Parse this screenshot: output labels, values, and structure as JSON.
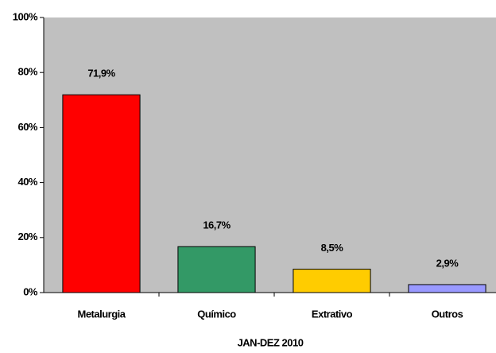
{
  "chart_data": {
    "type": "bar",
    "x_label": "JAN-DEZ 2010",
    "categories": [
      "Metalurgia",
      "Químico",
      "Extrativo",
      "Outros"
    ],
    "values": [
      71.9,
      16.7,
      8.5,
      2.9
    ],
    "value_labels": [
      "71,9%",
      "16,7%",
      "8,5%",
      "2,9%"
    ],
    "colors": [
      "#ff0000",
      "#339966",
      "#ffcc00",
      "#9999ff"
    ],
    "plot_background": "#c0c0c0",
    "ylim": [
      0,
      100
    ],
    "yticks": [
      {
        "value": 0,
        "label": "0%"
      },
      {
        "value": 20,
        "label": "20%"
      },
      {
        "value": 40,
        "label": "40%"
      },
      {
        "value": 60,
        "label": "60%"
      },
      {
        "value": 80,
        "label": "80%"
      },
      {
        "value": 100,
        "label": "100%"
      }
    ],
    "grid": false
  }
}
